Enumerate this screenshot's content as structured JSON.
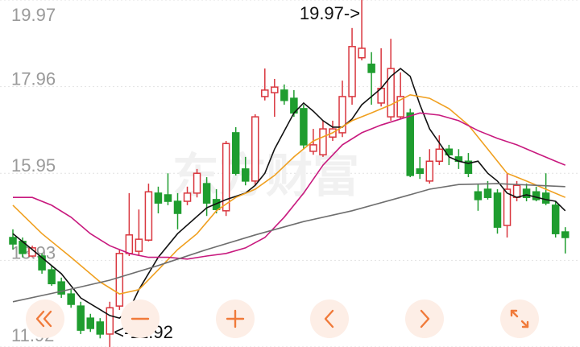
{
  "chart_data": {
    "type": "candlestick",
    "ylim": [
      11.92,
      19.97
    ],
    "yticks": [
      19.97,
      17.96,
      15.95,
      13.93,
      11.92
    ],
    "grid": true,
    "up_color": "#d9363e",
    "down_color": "#1f9d2f",
    "watermark": "东方财富",
    "annotations": [
      "19.97->",
      "<-11.92"
    ],
    "open": [
      14.46,
      14.37,
      14.03,
      14.03,
      13.71,
      13.43,
      13.15,
      12.87,
      12.59,
      12.5,
      12.22,
      12.87,
      14.09,
      14.14,
      14.4,
      15.49,
      15.45,
      15.3,
      15.3,
      15.49,
      15.71,
      15.34,
      15.08,
      16.89,
      16.05,
      15.77,
      17.73,
      17.82,
      17.88,
      17.69,
      17.45,
      16.46,
      16.38,
      16.79,
      16.89,
      17.73,
      18.63,
      18.48,
      17.58,
      17.26,
      17.26,
      17.35,
      16.05,
      15.77,
      16.23,
      16.51,
      16.33,
      16.23,
      15.52,
      15.58,
      15.49,
      14.74,
      15.39,
      15.58,
      15.52,
      15.49,
      15.21,
      14.59
    ],
    "close": [
      14.31,
      14.09,
      14.22,
      13.71,
      13.39,
      13.15,
      12.91,
      12.31,
      12.35,
      12.22,
      12.83,
      14.09,
      14.52,
      14.42,
      15.52,
      15.26,
      15.3,
      15.02,
      15.49,
      15.95,
      15.26,
      15.11,
      16.64,
      15.95,
      15.77,
      17.26,
      17.88,
      17.95,
      17.64,
      17.35,
      16.61,
      16.61,
      16.98,
      16.98,
      17.73,
      18.89,
      18.85,
      18.29,
      17.92,
      18.38,
      17.73,
      15.9,
      15.95,
      16.23,
      16.51,
      16.38,
      16.23,
      15.95,
      15.34,
      15.39,
      14.7,
      15.58,
      15.67,
      15.39,
      15.34,
      15.26,
      14.55,
      14.46
    ],
    "high": [
      14.65,
      14.46,
      14.27,
      14.09,
      13.81,
      13.53,
      13.25,
      12.97,
      12.69,
      12.59,
      12.97,
      14.18,
      15.49,
      15.11,
      15.71,
      15.64,
      15.95,
      15.49,
      15.64,
      16.05,
      15.86,
      15.58,
      16.7,
      17.02,
      16.33,
      17.32,
      18.38,
      18.14,
      18.01,
      17.88,
      17.54,
      16.98,
      17.17,
      17.17,
      18.1,
      19.32,
      19.97,
      18.76,
      18.85,
      19.07,
      18.29,
      17.45,
      16.33,
      16.51,
      16.83,
      16.61,
      16.51,
      16.42,
      15.71,
      15.77,
      15.58,
      15.95,
      15.77,
      15.71,
      15.64,
      15.95,
      15.3,
      14.7
    ],
    "low": [
      14.18,
      14.0,
      14.0,
      13.62,
      13.34,
      13.06,
      12.83,
      12.22,
      12.27,
      12.12,
      11.92,
      12.78,
      14.03,
      14.03,
      14.37,
      15.02,
      15.21,
      14.65,
      15.21,
      15.39,
      14.96,
      15.02,
      14.96,
      15.9,
      15.67,
      15.67,
      17.64,
      17.26,
      17.54,
      17.26,
      16.51,
      16.38,
      16.33,
      16.7,
      16.79,
      17.54,
      18.57,
      17.54,
      17.5,
      17.17,
      17.21,
      15.86,
      15.82,
      15.71,
      16.14,
      16.14,
      16.05,
      15.86,
      15.08,
      15.34,
      14.55,
      14.46,
      15.3,
      15.3,
      15.3,
      15.21,
      14.46,
      14.09
    ],
    "lines": [
      {
        "color": "#111111",
        "x": [
          0,
          2,
          5,
          7,
          10,
          11,
          12,
          13,
          15,
          17,
          20,
          22,
          24,
          25,
          26,
          27,
          29,
          30,
          31,
          32,
          33,
          34,
          35,
          36,
          38,
          39,
          40,
          41,
          42,
          43,
          45,
          46,
          47,
          48,
          49,
          50,
          51,
          52,
          53,
          55,
          56,
          57
        ],
        "values": [
          14.55,
          14.18,
          13.62,
          13.06,
          12.65,
          12.59,
          12.78,
          13.25,
          14.0,
          14.55,
          15.15,
          15.34,
          15.49,
          15.67,
          15.95,
          16.51,
          17.35,
          17.58,
          17.39,
          17.17,
          17.02,
          17.02,
          17.21,
          17.54,
          17.92,
          18.2,
          18.38,
          18.2,
          17.54,
          16.98,
          16.33,
          16.23,
          16.18,
          16.23,
          15.95,
          15.77,
          15.49,
          15.39,
          15.45,
          15.34,
          15.3,
          15.08
        ]
      },
      {
        "color": "#f0a020",
        "x": [
          0,
          3,
          6,
          9,
          11,
          13,
          15,
          17,
          19,
          21,
          23,
          25,
          27,
          29,
          31,
          33,
          35,
          37,
          39,
          41,
          43,
          45,
          47,
          49,
          51,
          53,
          55,
          57
        ],
        "values": [
          15.21,
          14.55,
          14.0,
          13.43,
          13.15,
          13.25,
          13.71,
          14.18,
          14.55,
          15.08,
          15.39,
          15.58,
          15.9,
          16.33,
          16.7,
          16.89,
          17.17,
          17.35,
          17.54,
          17.77,
          17.69,
          17.45,
          17.07,
          16.51,
          15.95,
          15.77,
          15.58,
          15.39
        ]
      },
      {
        "color": "#c8197e",
        "x": [
          0,
          2,
          4,
          6,
          8,
          10,
          12,
          14,
          16,
          18,
          20,
          22,
          24,
          26,
          28,
          30,
          32,
          34,
          36,
          38,
          40,
          42,
          44,
          46,
          48,
          50,
          52,
          54,
          56,
          57
        ],
        "values": [
          15.39,
          15.39,
          15.21,
          14.93,
          14.55,
          14.27,
          14.09,
          14.0,
          14.0,
          13.96,
          14.03,
          14.09,
          14.22,
          14.46,
          14.93,
          15.49,
          16.14,
          16.61,
          16.89,
          17.07,
          17.21,
          17.35,
          17.3,
          17.17,
          16.94,
          16.76,
          16.61,
          16.42,
          16.23,
          16.14
        ]
      },
      {
        "color": "#6e6e6e",
        "x": [
          0,
          5,
          10,
          15,
          20,
          25,
          30,
          35,
          40,
          43,
          46,
          50,
          54,
          57
        ],
        "values": [
          12.97,
          13.21,
          13.47,
          13.81,
          14.18,
          14.52,
          14.83,
          15.08,
          15.39,
          15.58,
          15.69,
          15.71,
          15.67,
          15.64
        ]
      }
    ]
  }
}
